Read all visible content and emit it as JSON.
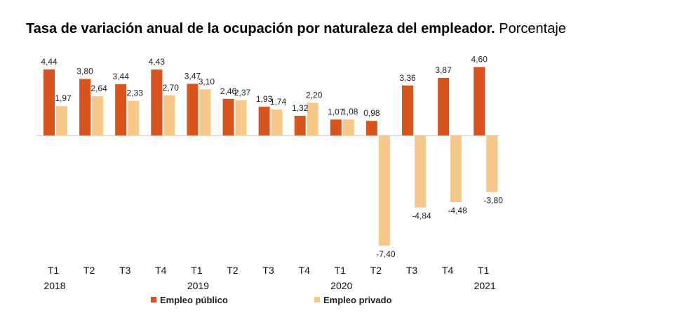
{
  "header": {
    "title_bold": "Tasa de variación anual de la ocupación por naturaleza del empleador.",
    "title_normal": "Porcentaje"
  },
  "colors": {
    "publico": "#d9531e",
    "privado": "#f6c88a",
    "axis": "#bfbfbf"
  },
  "chart_data": {
    "type": "bar",
    "title": "Tasa de variación anual de la ocupación por naturaleza del empleador. Porcentaje",
    "categories": [
      "T1",
      "T2",
      "T3",
      "T4",
      "T1",
      "T2",
      "T3",
      "T4",
      "T1",
      "T2",
      "T3",
      "T4",
      "T1"
    ],
    "years": [
      {
        "label": "2018",
        "index": 0
      },
      {
        "label": "2019",
        "index": 4
      },
      {
        "label": "2020",
        "index": 8
      },
      {
        "label": "2021",
        "index": 12
      }
    ],
    "series": [
      {
        "name": "Empleo público",
        "values": [
          4.44,
          3.8,
          3.44,
          4.43,
          3.47,
          2.46,
          1.93,
          1.32,
          1.07,
          0.98,
          3.36,
          3.87,
          4.6
        ],
        "labels": [
          "4,44",
          "3,80",
          "3,44",
          "4,43",
          "3,47",
          "2,46",
          "1,93",
          "1,32",
          "1,07",
          "0,98",
          "3,36",
          "3,87",
          "4,60"
        ]
      },
      {
        "name": "Empleo privado",
        "values": [
          1.97,
          2.64,
          2.33,
          2.7,
          3.1,
          2.37,
          1.74,
          2.2,
          1.08,
          -7.4,
          -4.84,
          -4.48,
          -3.8
        ],
        "labels": [
          "1,97",
          "2,64",
          "2,33",
          "2,70",
          "3,10",
          "2,37",
          "1,74",
          "2,20",
          "1,08",
          "-7,40",
          "-4,84",
          "-4,48",
          "-3,80"
        ]
      }
    ],
    "legend_position": "bottom",
    "grid": false
  }
}
